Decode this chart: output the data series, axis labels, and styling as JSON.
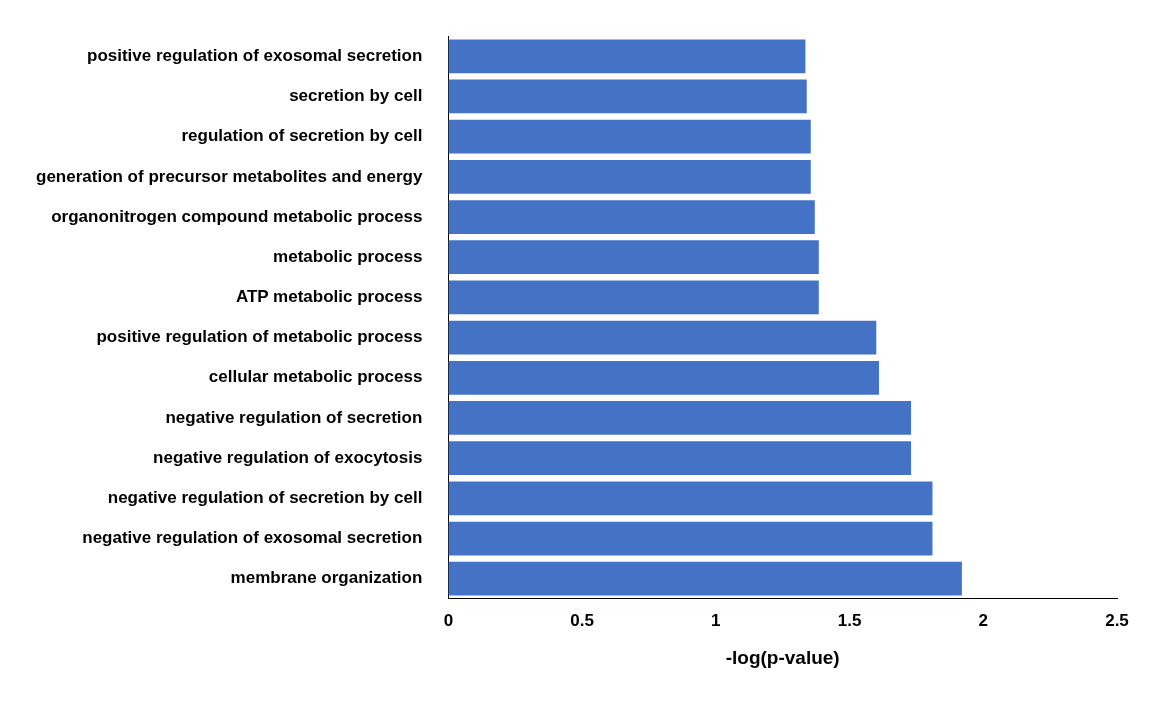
{
  "chart_data": {
    "type": "bar",
    "orientation": "horizontal",
    "xlabel": "-log(p-value)",
    "categories": [
      "positive regulation of exosomal secretion",
      "secretion by cell",
      "regulation of secretion by cell",
      "generation of precursor metabolites and energy",
      "organonitrogen compound metabolic process",
      "metabolic process",
      "ATP metabolic process",
      "positive regulation of metabolic process",
      "cellular metabolic process",
      "negative regulation of secretion",
      "negative regulation of exocytosis",
      "negative regulation of secretion by cell",
      "negative regulation of exosomal secretion",
      "membrane organization"
    ],
    "values": [
      1.335,
      1.34,
      1.355,
      1.355,
      1.37,
      1.385,
      1.385,
      1.6,
      1.61,
      1.73,
      1.73,
      1.81,
      1.81,
      1.92
    ],
    "color": "#4472c4",
    "xlim": [
      0,
      2.5
    ],
    "xticks": [
      0,
      0.5,
      1,
      1.5,
      2,
      2.5
    ],
    "grid": false,
    "legend": false
  }
}
